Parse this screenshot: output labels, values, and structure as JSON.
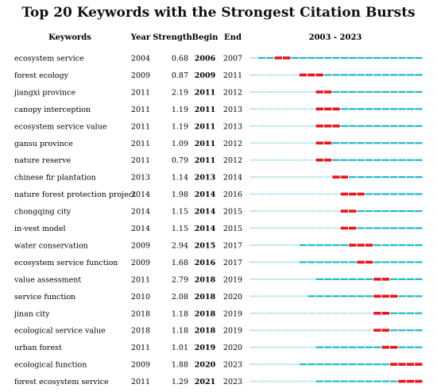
{
  "chart_data": {
    "type": "table",
    "title": "Top 20 Keywords with the Strongest Citation Bursts",
    "columns": [
      "Keywords",
      "Year",
      "Strength",
      "Begin",
      "End",
      "2003 - 2023"
    ],
    "range": [
      2003,
      2023
    ],
    "colors": {
      "line": "#20b8c8",
      "pre": "#bfe8ee",
      "burst": "#e8161c"
    },
    "rows": [
      {
        "keyword": "ecosystem service",
        "year": "2004",
        "strength": "0.68",
        "begin": "2006",
        "end": "2007"
      },
      {
        "keyword": "forest ecology",
        "year": "2009",
        "strength": "0.87",
        "begin": "2009",
        "end": "2011"
      },
      {
        "keyword": "jiangxi province",
        "year": "2011",
        "strength": "2.19",
        "begin": "2011",
        "end": "2012"
      },
      {
        "keyword": "canopy interception",
        "year": "2011",
        "strength": "1.19",
        "begin": "2011",
        "end": "2013"
      },
      {
        "keyword": "ecosystem service value",
        "year": "2011",
        "strength": "1.19",
        "begin": "2011",
        "end": "2013"
      },
      {
        "keyword": "gansu province",
        "year": "2011",
        "strength": "1.09",
        "begin": "2011",
        "end": "2012"
      },
      {
        "keyword": "nature reserve",
        "year": "2011",
        "strength": "0.79",
        "begin": "2011",
        "end": "2012"
      },
      {
        "keyword": "chinese fir plantation",
        "year": "2013",
        "strength": "1.14",
        "begin": "2013",
        "end": "2014"
      },
      {
        "keyword": "nature forest protection project",
        "year": "2014",
        "strength": "1.98",
        "begin": "2014",
        "end": "2016"
      },
      {
        "keyword": "chongqing city",
        "year": "2014",
        "strength": "1.15",
        "begin": "2014",
        "end": "2015"
      },
      {
        "keyword": "in-vest model",
        "year": "2014",
        "strength": "1.15",
        "begin": "2014",
        "end": "2015"
      },
      {
        "keyword": "water conservation",
        "year": "2009",
        "strength": "2.94",
        "begin": "2015",
        "end": "2017"
      },
      {
        "keyword": "ecosystem service function",
        "year": "2009",
        "strength": "1.68",
        "begin": "2016",
        "end": "2017"
      },
      {
        "keyword": "value assessment",
        "year": "2011",
        "strength": "2.79",
        "begin": "2018",
        "end": "2019"
      },
      {
        "keyword": "service function",
        "year": "2010",
        "strength": "2.08",
        "begin": "2018",
        "end": "2020"
      },
      {
        "keyword": "jinan city",
        "year": "2018",
        "strength": "1.18",
        "begin": "2018",
        "end": "2019"
      },
      {
        "keyword": "ecological service value",
        "year": "2018",
        "strength": "1.18",
        "begin": "2018",
        "end": "2019"
      },
      {
        "keyword": "urban forest",
        "year": "2011",
        "strength": "1.01",
        "begin": "2019",
        "end": "2020"
      },
      {
        "keyword": "ecological function",
        "year": "2009",
        "strength": "1.88",
        "begin": "2020",
        "end": "2023"
      },
      {
        "keyword": "forest ecosystem service",
        "year": "2011",
        "strength": "1.29",
        "begin": "2021",
        "end": "2023"
      }
    ]
  }
}
